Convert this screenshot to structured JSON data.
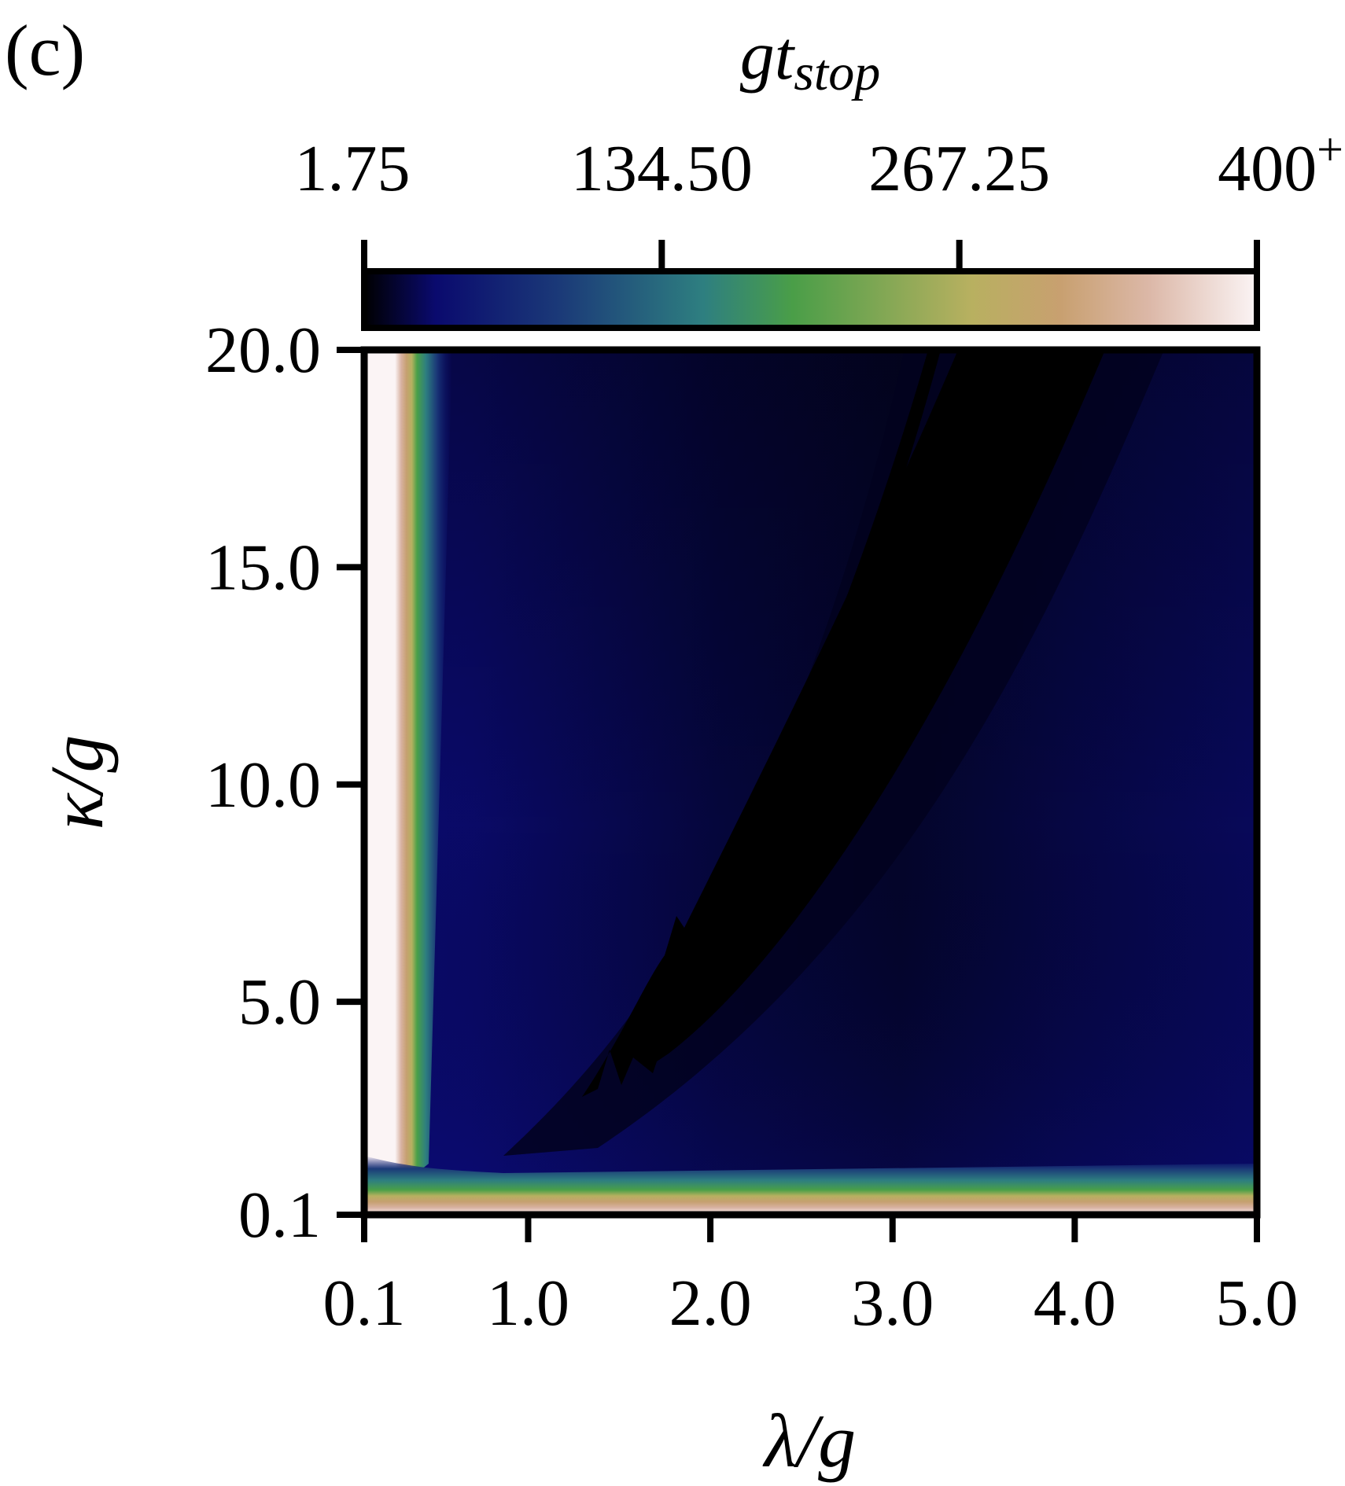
{
  "panel_label": "(c)",
  "chart_data": {
    "type": "heatmap",
    "title": "",
    "xlabel": "λ/g",
    "ylabel": "κ/g",
    "x_ticks": [
      {
        "value": 0.1,
        "label": "0.1"
      },
      {
        "value": 1.0,
        "label": "1.0"
      },
      {
        "value": 2.0,
        "label": "2.0"
      },
      {
        "value": 3.0,
        "label": "3.0"
      },
      {
        "value": 4.0,
        "label": "4.0"
      },
      {
        "value": 5.0,
        "label": "5.0"
      }
    ],
    "y_ticks": [
      {
        "value": 0.1,
        "label": "0.1"
      },
      {
        "value": 5.0,
        "label": "5.0"
      },
      {
        "value": 10.0,
        "label": "10.0"
      },
      {
        "value": 15.0,
        "label": "15.0"
      },
      {
        "value": 20.0,
        "label": "20.0"
      }
    ],
    "xlim": [
      0.1,
      5.0
    ],
    "ylim": [
      0.1,
      20.0
    ],
    "colorbar": {
      "label_base": "gt",
      "label_sub": "stop",
      "orientation": "horizontal",
      "location": "top",
      "range": [
        1.75,
        400
      ],
      "ticks": [
        {
          "value": 1.75,
          "label": "1.75"
        },
        {
          "value": 134.5,
          "label": "134.50"
        },
        {
          "value": 267.25,
          "label": "267.25"
        },
        {
          "value": 400,
          "label": "400",
          "sup": "+"
        }
      ],
      "colormap": [
        "#000000",
        "#0a0a6e",
        "#1b3a78",
        "#2e7f80",
        "#4a9e48",
        "#b8b060",
        "#c8a070",
        "#dcb8a8",
        "#fbf4f5"
      ]
    },
    "regions_description_values": {
      "left_edge_gt_stop": 400,
      "bottom_edge_gt_stop": 400,
      "interior_gt_stop_approx": 25,
      "black_wedge_gt_stop_approx": 2
    }
  }
}
